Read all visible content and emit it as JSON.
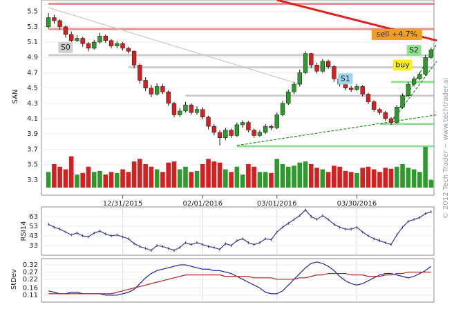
{
  "chart_data": {
    "type": "candlestick",
    "ylabel": "SAN",
    "copyright": "© 2012 Tech Trader ~ www.techtrader.ai",
    "ylim": [
      3.1,
      5.65
    ],
    "yticks": [
      3.3,
      3.5,
      3.7,
      3.9,
      4.1,
      4.3,
      4.5,
      4.7,
      4.9,
      5.1,
      5.3,
      5.5
    ],
    "xticks": [
      {
        "value": 13,
        "label": "12/31/2015"
      },
      {
        "value": 27,
        "label": "02/01/2016"
      },
      {
        "value": 40,
        "label": "03/01/2016"
      },
      {
        "value": 54,
        "label": "03/30/2016"
      }
    ],
    "candles": [
      [
        5.3,
        5.48,
        5.28,
        5.42
      ],
      [
        5.42,
        5.46,
        5.34,
        5.38
      ],
      [
        5.38,
        5.4,
        5.26,
        5.3
      ],
      [
        5.3,
        5.32,
        5.16,
        5.2
      ],
      [
        5.2,
        5.24,
        5.08,
        5.12
      ],
      [
        5.12,
        5.19,
        5.1,
        5.15
      ],
      [
        5.15,
        5.17,
        5.04,
        5.08
      ],
      [
        5.08,
        5.1,
        4.98,
        5.02
      ],
      [
        5.02,
        5.13,
        5.0,
        5.1
      ],
      [
        5.1,
        5.22,
        5.08,
        5.18
      ],
      [
        5.18,
        5.2,
        5.09,
        5.12
      ],
      [
        5.12,
        5.14,
        5.02,
        5.05
      ],
      [
        5.05,
        5.11,
        5.02,
        5.08
      ],
      [
        5.08,
        5.1,
        4.99,
        5.02
      ],
      [
        5.02,
        5.04,
        4.95,
        4.98
      ],
      [
        4.98,
        4.99,
        4.76,
        4.8
      ],
      [
        4.8,
        4.82,
        4.56,
        4.6
      ],
      [
        4.6,
        4.64,
        4.46,
        4.5
      ],
      [
        4.5,
        4.54,
        4.38,
        4.42
      ],
      [
        4.42,
        4.56,
        4.4,
        4.52
      ],
      [
        4.52,
        4.55,
        4.42,
        4.45
      ],
      [
        4.45,
        4.47,
        4.27,
        4.3
      ],
      [
        4.3,
        4.32,
        4.12,
        4.15
      ],
      [
        4.15,
        4.24,
        4.12,
        4.2
      ],
      [
        4.2,
        4.32,
        4.18,
        4.28
      ],
      [
        4.28,
        4.3,
        4.15,
        4.18
      ],
      [
        4.18,
        4.26,
        4.15,
        4.22
      ],
      [
        4.22,
        4.25,
        4.09,
        4.12
      ],
      [
        4.12,
        4.14,
        3.96,
        4.0
      ],
      [
        4.0,
        4.03,
        3.88,
        3.92
      ],
      [
        3.92,
        3.95,
        3.75,
        3.85
      ],
      [
        3.85,
        3.98,
        3.82,
        3.95
      ],
      [
        3.95,
        3.97,
        3.85,
        3.88
      ],
      [
        3.88,
        4.05,
        3.86,
        4.02
      ],
      [
        4.02,
        4.08,
        3.98,
        4.05
      ],
      [
        4.05,
        4.07,
        3.92,
        3.95
      ],
      [
        3.95,
        3.97,
        3.85,
        3.88
      ],
      [
        3.88,
        3.95,
        3.86,
        3.92
      ],
      [
        3.92,
        4.03,
        3.9,
        4.0
      ],
      [
        4.0,
        4.02,
        3.95,
        3.98
      ],
      [
        3.98,
        4.18,
        3.96,
        4.15
      ],
      [
        4.15,
        4.33,
        4.13,
        4.3
      ],
      [
        4.3,
        4.48,
        4.28,
        4.45
      ],
      [
        4.45,
        4.58,
        4.42,
        4.55
      ],
      [
        4.55,
        4.74,
        4.52,
        4.7
      ],
      [
        4.7,
        4.98,
        4.68,
        4.95
      ],
      [
        4.95,
        4.96,
        4.76,
        4.8
      ],
      [
        4.8,
        4.83,
        4.69,
        4.72
      ],
      [
        4.72,
        4.88,
        4.7,
        4.85
      ],
      [
        4.85,
        4.87,
        4.75,
        4.78
      ],
      [
        4.78,
        4.8,
        4.58,
        4.62
      ],
      [
        4.62,
        4.64,
        4.52,
        4.55
      ],
      [
        4.55,
        4.57,
        4.47,
        4.5
      ],
      [
        4.5,
        4.53,
        4.45,
        4.48
      ],
      [
        4.48,
        4.55,
        4.46,
        4.52
      ],
      [
        4.52,
        4.54,
        4.39,
        4.42
      ],
      [
        4.42,
        4.44,
        4.29,
        4.32
      ],
      [
        4.32,
        4.34,
        4.19,
        4.22
      ],
      [
        4.22,
        4.24,
        4.15,
        4.18
      ],
      [
        4.18,
        4.2,
        4.07,
        4.1
      ],
      [
        4.1,
        4.12,
        4.02,
        4.05
      ],
      [
        4.05,
        4.28,
        4.03,
        4.25
      ],
      [
        4.25,
        4.43,
        4.23,
        4.4
      ],
      [
        4.4,
        4.58,
        4.38,
        4.55
      ],
      [
        4.55,
        4.65,
        4.52,
        4.62
      ],
      [
        4.62,
        4.71,
        4.6,
        4.68
      ],
      [
        4.68,
        4.93,
        4.66,
        4.9
      ],
      [
        4.9,
        5.03,
        4.88,
        5.0
      ]
    ],
    "volume": [
      30,
      45,
      40,
      35,
      60,
      25,
      28,
      40,
      30,
      32,
      25,
      30,
      28,
      35,
      30,
      50,
      55,
      45,
      40,
      35,
      30,
      48,
      50,
      35,
      40,
      30,
      32,
      45,
      55,
      50,
      48,
      35,
      30,
      40,
      25,
      45,
      40,
      30,
      30,
      28,
      55,
      45,
      40,
      42,
      48,
      50,
      45,
      38,
      35,
      30,
      42,
      40,
      32,
      30,
      28,
      38,
      40,
      35,
      30,
      38,
      36,
      40,
      45,
      38,
      35,
      30,
      78,
      15
    ],
    "up_color": "#2e9a2e",
    "down_color": "#d42020",
    "levels": [
      {
        "value": 5.6,
        "from": 0,
        "color": "#e06060"
      },
      {
        "value": 5.27,
        "from": 0,
        "color": "#e06060"
      },
      {
        "value": 4.93,
        "from": 0,
        "color": "#b8b8b8"
      },
      {
        "value": 4.77,
        "from": 14,
        "color": "#b8b8b8"
      },
      {
        "value": 4.4,
        "from": 24,
        "color": "#b8b8b8"
      },
      {
        "value": 4.58,
        "from": 60,
        "color": "#6ad06a"
      },
      {
        "value": 4.03,
        "from": 58,
        "color": "#6ad06a"
      },
      {
        "value": 3.74,
        "from": 33,
        "color": "#6ad06a"
      }
    ],
    "trendlines": [
      {
        "x": [
          40,
          68
        ],
        "y": [
          5.65,
          5.12
        ],
        "color": "#e02020"
      },
      {
        "x": [
          0,
          44
        ],
        "y": [
          5.55,
          4.55
        ],
        "color": "#c8c8c8"
      },
      {
        "x": [
          33,
          68
        ],
        "y": [
          3.75,
          4.15
        ],
        "color": "#2a8a2a"
      },
      {
        "x": [
          60,
          68
        ],
        "y": [
          4.05,
          5.08
        ],
        "color": "#2a8a2a"
      },
      {
        "x": [
          60,
          68
        ],
        "y": [
          4.05,
          4.85
        ],
        "color": "#2a8a2a"
      }
    ],
    "annotations": [
      {
        "text": "S0",
        "x": 3,
        "y": 5.03,
        "color": "#cfcfcf"
      },
      {
        "text": "S1",
        "x": 52,
        "y": 4.62,
        "color": "#9fd6f0"
      },
      {
        "text": "S2",
        "x": 64,
        "y": 4.99,
        "color": "#8fe08f"
      },
      {
        "text": "buy",
        "x": 62,
        "y": 4.8,
        "color": "#f8f020"
      },
      {
        "text": "sell +4.7%",
        "x": 61,
        "y": 5.2,
        "color": "#f0a020"
      }
    ],
    "rsi": {
      "label": "RSI14",
      "ylim": [
        23,
        73
      ],
      "yticks": [
        33,
        43,
        53,
        63
      ],
      "color": "#3a3a9a",
      "values": [
        55,
        52,
        50,
        47,
        44,
        46,
        43,
        42,
        46,
        48,
        45,
        43,
        44,
        42,
        40,
        35,
        32,
        30,
        28,
        33,
        32,
        30,
        28,
        31,
        36,
        34,
        36,
        34,
        32,
        31,
        29,
        35,
        33,
        38,
        40,
        36,
        34,
        36,
        40,
        39,
        47,
        52,
        56,
        60,
        64,
        70,
        63,
        60,
        64,
        60,
        55,
        52,
        50,
        50,
        52,
        47,
        43,
        40,
        38,
        36,
        34,
        44,
        52,
        58,
        60,
        62,
        66,
        68
      ]
    },
    "stdev": {
      "label": "StDev",
      "ylim": [
        0.062,
        0.363
      ],
      "yticks": [
        0.11,
        0.16,
        0.22,
        0.27,
        0.32
      ],
      "series": [
        {
          "color": "#2020b0",
          "values": [
            0.14,
            0.13,
            0.12,
            0.12,
            0.13,
            0.13,
            0.12,
            0.12,
            0.12,
            0.12,
            0.11,
            0.11,
            0.11,
            0.12,
            0.13,
            0.15,
            0.19,
            0.23,
            0.26,
            0.28,
            0.29,
            0.3,
            0.31,
            0.32,
            0.32,
            0.31,
            0.3,
            0.29,
            0.29,
            0.28,
            0.28,
            0.27,
            0.26,
            0.24,
            0.22,
            0.2,
            0.18,
            0.16,
            0.13,
            0.12,
            0.12,
            0.14,
            0.18,
            0.22,
            0.26,
            0.3,
            0.33,
            0.34,
            0.33,
            0.31,
            0.28,
            0.24,
            0.21,
            0.19,
            0.18,
            0.19,
            0.21,
            0.23,
            0.25,
            0.26,
            0.26,
            0.25,
            0.24,
            0.23,
            0.24,
            0.26,
            0.28,
            0.31
          ]
        },
        {
          "color": "#b02020",
          "values": [
            0.12,
            0.12,
            0.12,
            0.12,
            0.12,
            0.12,
            0.12,
            0.12,
            0.12,
            0.12,
            0.12,
            0.12,
            0.13,
            0.14,
            0.15,
            0.16,
            0.17,
            0.18,
            0.19,
            0.2,
            0.21,
            0.22,
            0.23,
            0.24,
            0.25,
            0.25,
            0.25,
            0.25,
            0.25,
            0.25,
            0.25,
            0.24,
            0.24,
            0.24,
            0.24,
            0.24,
            0.23,
            0.23,
            0.23,
            0.23,
            0.22,
            0.22,
            0.22,
            0.22,
            0.23,
            0.23,
            0.24,
            0.25,
            0.25,
            0.26,
            0.26,
            0.26,
            0.26,
            0.25,
            0.25,
            0.25,
            0.24,
            0.24,
            0.24,
            0.25,
            0.25,
            0.26,
            0.26,
            0.27,
            0.27,
            0.27,
            0.27,
            0.27
          ]
        }
      ]
    }
  }
}
